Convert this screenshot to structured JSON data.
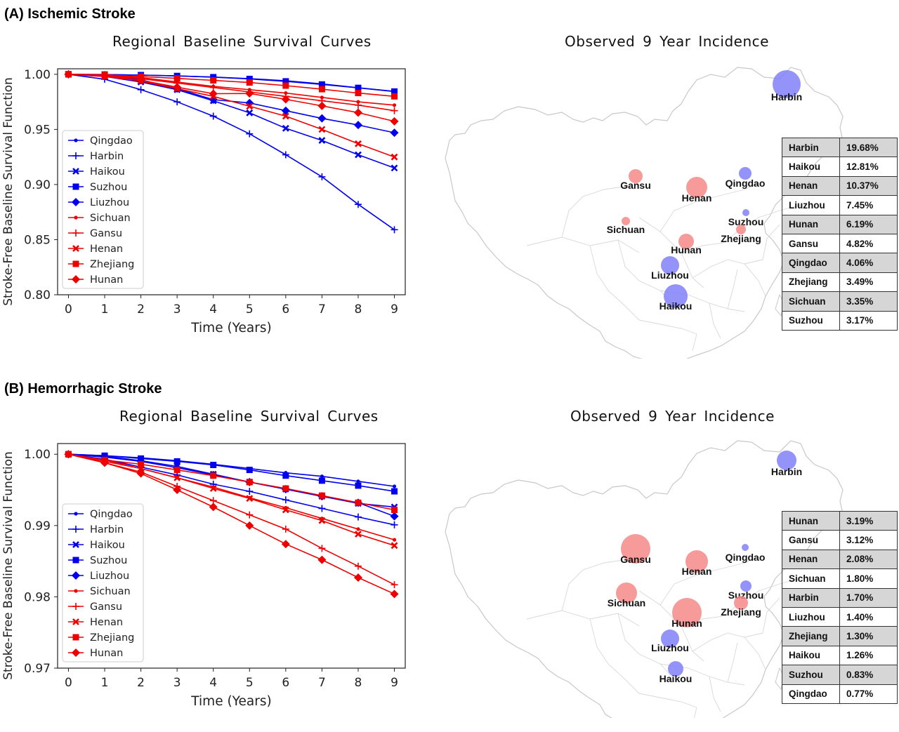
{
  "colors": {
    "blue": "#0000ee",
    "red": "#ee0000",
    "blue_bubble": "#8080f8",
    "red_bubble": "#f48888"
  },
  "panels": [
    {
      "id": "A",
      "label": "(A) Ischemic Stroke",
      "chart_title": "Regional Baseline Survival Curves",
      "map_title": "Observed 9 Year Incidence",
      "incidence": [
        {
          "region": "Harbin",
          "value": "19.68%"
        },
        {
          "region": "Haikou",
          "value": "12.81%"
        },
        {
          "region": "Henan",
          "value": "10.37%"
        },
        {
          "region": "Liuzhou",
          "value": "7.45%"
        },
        {
          "region": "Hunan",
          "value": "6.19%"
        },
        {
          "region": "Gansu",
          "value": "4.82%"
        },
        {
          "region": "Qingdao",
          "value": "4.06%"
        },
        {
          "region": "Zhejiang",
          "value": "3.49%"
        },
        {
          "region": "Sichuan",
          "value": "3.35%"
        },
        {
          "region": "Suzhou",
          "value": "3.17%"
        }
      ],
      "map_bubbles": [
        {
          "region": "Harbin",
          "color": "blue",
          "incidence_pct": 19.68
        },
        {
          "region": "Haikou",
          "color": "blue",
          "incidence_pct": 12.81
        },
        {
          "region": "Henan",
          "color": "red",
          "incidence_pct": 10.37
        },
        {
          "region": "Liuzhou",
          "color": "blue",
          "incidence_pct": 7.45
        },
        {
          "region": "Hunan",
          "color": "red",
          "incidence_pct": 6.19
        },
        {
          "region": "Gansu",
          "color": "red",
          "incidence_pct": 4.82
        },
        {
          "region": "Qingdao",
          "color": "blue",
          "incidence_pct": 4.06
        },
        {
          "region": "Zhejiang",
          "color": "red",
          "incidence_pct": 3.49
        },
        {
          "region": "Sichuan",
          "color": "red",
          "incidence_pct": 3.35
        },
        {
          "region": "Suzhou",
          "color": "blue",
          "incidence_pct": 3.17
        }
      ]
    },
    {
      "id": "B",
      "label": "(B) Hemorrhagic Stroke",
      "chart_title": "Regional Baseline Survival Curves",
      "map_title": "Observed 9 Year Incidence",
      "incidence": [
        {
          "region": "Hunan",
          "value": "3.19%"
        },
        {
          "region": "Gansu",
          "value": "3.12%"
        },
        {
          "region": "Henan",
          "value": "2.08%"
        },
        {
          "region": "Sichuan",
          "value": "1.80%"
        },
        {
          "region": "Harbin",
          "value": "1.70%"
        },
        {
          "region": "Liuzhou",
          "value": "1.40%"
        },
        {
          "region": "Zhejiang",
          "value": "1.30%"
        },
        {
          "region": "Haikou",
          "value": "1.26%"
        },
        {
          "region": "Suzhou",
          "value": "0.83%"
        },
        {
          "region": "Qingdao",
          "value": "0.77%"
        }
      ],
      "map_bubbles": [
        {
          "region": "Hunan",
          "color": "red",
          "incidence_pct": 3.19
        },
        {
          "region": "Gansu",
          "color": "red",
          "incidence_pct": 3.12
        },
        {
          "region": "Henan",
          "color": "red",
          "incidence_pct": 2.08
        },
        {
          "region": "Sichuan",
          "color": "red",
          "incidence_pct": 1.8
        },
        {
          "region": "Harbin",
          "color": "blue",
          "incidence_pct": 1.7
        },
        {
          "region": "Liuzhou",
          "color": "blue",
          "incidence_pct": 1.4
        },
        {
          "region": "Zhejiang",
          "color": "red",
          "incidence_pct": 1.3
        },
        {
          "region": "Haikou",
          "color": "blue",
          "incidence_pct": 1.26
        },
        {
          "region": "Suzhou",
          "color": "blue",
          "incidence_pct": 0.83
        },
        {
          "region": "Qingdao",
          "color": "blue",
          "incidence_pct": 0.77
        }
      ]
    }
  ],
  "chart_data": [
    {
      "type": "line",
      "title": "Regional Baseline Survival Curves",
      "xlabel": "Time (Years)",
      "ylabel": "Stroke-Free Baseline Survival Function",
      "x": [
        0,
        1,
        2,
        3,
        4,
        5,
        6,
        7,
        8,
        9
      ],
      "xlim": [
        -0.3,
        9.3
      ],
      "ylim": [
        0.8,
        1.005
      ],
      "yticks": [
        "0.80",
        "0.85",
        "0.90",
        "0.95",
        "1.00"
      ],
      "ytick_values": [
        0.8,
        0.85,
        0.9,
        0.95,
        1.0
      ],
      "legend_position": "center-left",
      "series": [
        {
          "name": "Qingdao",
          "color": "blue",
          "marker": "dot",
          "values": [
            1.0,
            0.9997,
            0.9993,
            0.9986,
            0.9975,
            0.996,
            0.9942,
            0.9913,
            0.9878,
            0.9845
          ]
        },
        {
          "name": "Harbin",
          "color": "blue",
          "marker": "plus",
          "values": [
            1.0,
            0.9955,
            0.986,
            0.975,
            0.962,
            0.946,
            0.927,
            0.907,
            0.882,
            0.859
          ]
        },
        {
          "name": "Haikou",
          "color": "blue",
          "marker": "x",
          "values": [
            1.0,
            0.998,
            0.993,
            0.986,
            0.976,
            0.965,
            0.951,
            0.94,
            0.927,
            0.915
          ]
        },
        {
          "name": "Suzhou",
          "color": "blue",
          "marker": "square",
          "values": [
            1.0,
            0.9998,
            0.9993,
            0.9985,
            0.9974,
            0.9958,
            0.9936,
            0.9908,
            0.9877,
            0.9844
          ]
        },
        {
          "name": "Liuzhou",
          "color": "blue",
          "marker": "diamond",
          "values": [
            1.0,
            0.9992,
            0.995,
            0.987,
            0.977,
            0.974,
            0.967,
            0.96,
            0.954,
            0.947
          ]
        },
        {
          "name": "Sichuan",
          "color": "red",
          "marker": "dot",
          "values": [
            1.0,
            0.9992,
            0.997,
            0.993,
            0.989,
            0.986,
            0.983,
            0.979,
            0.975,
            0.972
          ]
        },
        {
          "name": "Gansu",
          "color": "red",
          "marker": "plus",
          "values": [
            1.0,
            0.999,
            0.996,
            0.992,
            0.988,
            0.984,
            0.98,
            0.976,
            0.972,
            0.967
          ]
        },
        {
          "name": "Henan",
          "color": "red",
          "marker": "x",
          "values": [
            1.0,
            0.998,
            0.994,
            0.987,
            0.98,
            0.971,
            0.962,
            0.95,
            0.937,
            0.925
          ]
        },
        {
          "name": "Zhejiang",
          "color": "red",
          "marker": "square",
          "values": [
            1.0,
            0.9995,
            0.998,
            0.9963,
            0.9945,
            0.9925,
            0.9897,
            0.9865,
            0.983,
            0.98
          ]
        },
        {
          "name": "Hunan",
          "color": "red",
          "marker": "diamond",
          "values": [
            1.0,
            0.9985,
            0.9945,
            0.9883,
            0.9824,
            0.9826,
            0.9773,
            0.9713,
            0.9652,
            0.9573
          ]
        }
      ]
    },
    {
      "type": "line",
      "title": "Regional Baseline Survival Curves",
      "xlabel": "Time (Years)",
      "ylabel": "Stroke-Free Baseline Survival Function",
      "x": [
        0,
        1,
        2,
        3,
        4,
        5,
        6,
        7,
        8,
        9
      ],
      "xlim": [
        -0.3,
        9.3
      ],
      "ylim": [
        0.97,
        1.0015
      ],
      "yticks": [
        "0.97",
        "0.98",
        "0.99",
        "1.00"
      ],
      "ytick_values": [
        0.97,
        0.98,
        0.99,
        1.0
      ],
      "legend_position": "center-left",
      "series": [
        {
          "name": "Qingdao",
          "color": "blue",
          "marker": "dot",
          "values": [
            1.0,
            0.9998,
            0.9995,
            0.9991,
            0.9986,
            0.998,
            0.9974,
            0.9969,
            0.9962,
            0.9955
          ]
        },
        {
          "name": "Harbin",
          "color": "blue",
          "marker": "plus",
          "values": [
            1.0,
            0.9993,
            0.9982,
            0.9971,
            0.9958,
            0.9948,
            0.9936,
            0.9924,
            0.9912,
            0.9901
          ]
        },
        {
          "name": "Haikou",
          "color": "blue",
          "marker": "x",
          "values": [
            1.0,
            0.9997,
            0.9991,
            0.9983,
            0.9972,
            0.9961,
            0.9951,
            0.9941,
            0.9931,
            0.9926
          ]
        },
        {
          "name": "Suzhou",
          "color": "blue",
          "marker": "square",
          "values": [
            1.0,
            0.9998,
            0.9994,
            0.999,
            0.9985,
            0.9978,
            0.997,
            0.9963,
            0.9956,
            0.9948
          ]
        },
        {
          "name": "Liuzhou",
          "color": "blue",
          "marker": "diamond",
          "values": [
            1.0,
            0.9996,
            0.999,
            0.9981,
            0.9971,
            0.9961,
            0.9951,
            0.9941,
            0.9932,
            0.9913
          ]
        },
        {
          "name": "Sichuan",
          "color": "red",
          "marker": "dot",
          "values": [
            1.0,
            0.9992,
            0.998,
            0.9967,
            0.9954,
            0.9939,
            0.9925,
            0.991,
            0.9895,
            0.988
          ]
        },
        {
          "name": "Gansu",
          "color": "red",
          "marker": "plus",
          "values": [
            1.0,
            0.9988,
            0.9975,
            0.9955,
            0.9935,
            0.9915,
            0.9895,
            0.9868,
            0.9843,
            0.9817
          ]
        },
        {
          "name": "Henan",
          "color": "red",
          "marker": "x",
          "values": [
            1.0,
            0.999,
            0.998,
            0.9967,
            0.9952,
            0.9938,
            0.9922,
            0.9907,
            0.9888,
            0.9872
          ]
        },
        {
          "name": "Zhejiang",
          "color": "red",
          "marker": "square",
          "values": [
            1.0,
            0.9992,
            0.9986,
            0.9978,
            0.997,
            0.9961,
            0.9952,
            0.9942,
            0.9932,
            0.9922
          ]
        },
        {
          "name": "Hunan",
          "color": "red",
          "marker": "diamond",
          "values": [
            1.0,
            0.9988,
            0.9973,
            0.995,
            0.9926,
            0.99,
            0.9874,
            0.9852,
            0.9827,
            0.9804
          ]
        }
      ]
    }
  ]
}
